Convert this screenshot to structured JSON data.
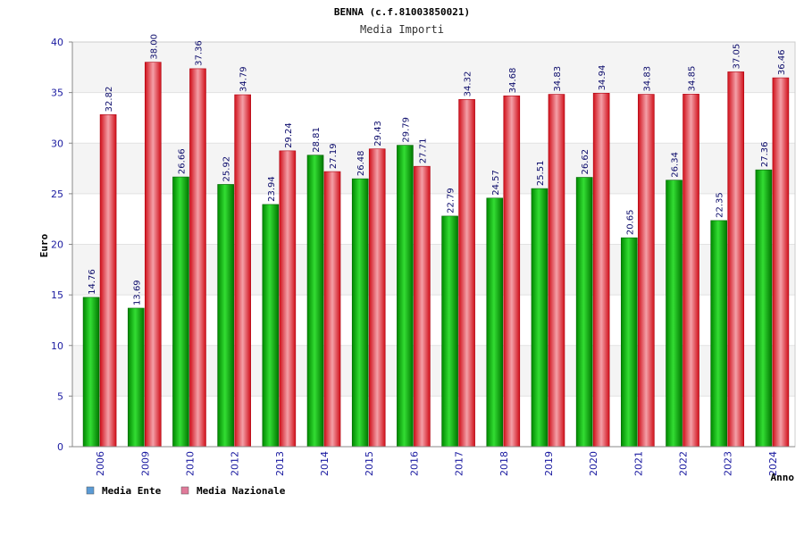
{
  "chart_data": {
    "type": "bar",
    "title": "BENNA (c.f.81003850021)",
    "subtitle": "Media Importi",
    "xlabel": "Anno",
    "ylabel": "Euro",
    "ylim": [
      0,
      40
    ],
    "yticks": [
      0,
      5,
      10,
      15,
      20,
      25,
      30,
      35,
      40
    ],
    "categories": [
      "2006",
      "2009",
      "2010",
      "2012",
      "2013",
      "2014",
      "2015",
      "2016",
      "2017",
      "2018",
      "2019",
      "2020",
      "2021",
      "2022",
      "2023",
      "2024"
    ],
    "series": [
      {
        "name": "Media Ente",
        "color": "#00aa00",
        "legend_color": "#5b9bd5",
        "values": [
          14.76,
          13.69,
          26.66,
          25.92,
          23.94,
          28.81,
          26.48,
          29.79,
          22.79,
          24.57,
          25.51,
          26.62,
          20.65,
          26.34,
          22.35,
          27.36
        ],
        "labels": [
          "14.76",
          "13.69",
          "26.66",
          "25.92",
          "23.94",
          "28.81",
          "26.48",
          "29.79",
          "22.79",
          "24.57",
          "25.51",
          "26.62",
          "20.65",
          "26.34",
          "22.35",
          "27.36"
        ]
      },
      {
        "name": "Media Nazionale",
        "color": "#e8141e",
        "legend_color": "#e07a9a",
        "values": [
          32.82,
          38.0,
          37.36,
          34.79,
          29.24,
          27.19,
          29.43,
          27.71,
          34.32,
          34.68,
          34.83,
          34.94,
          34.83,
          34.85,
          37.05,
          36.46
        ],
        "labels": [
          "32.82",
          "38.00",
          "37.36",
          "34.79",
          "29.24",
          "27.19",
          "29.43",
          "27.71",
          "34.32",
          "34.68",
          "34.83",
          "34.94",
          "34.83",
          "34.85",
          "37.05",
          "36.46"
        ]
      }
    ],
    "grid": true,
    "legend_position": "bottom-left"
  }
}
